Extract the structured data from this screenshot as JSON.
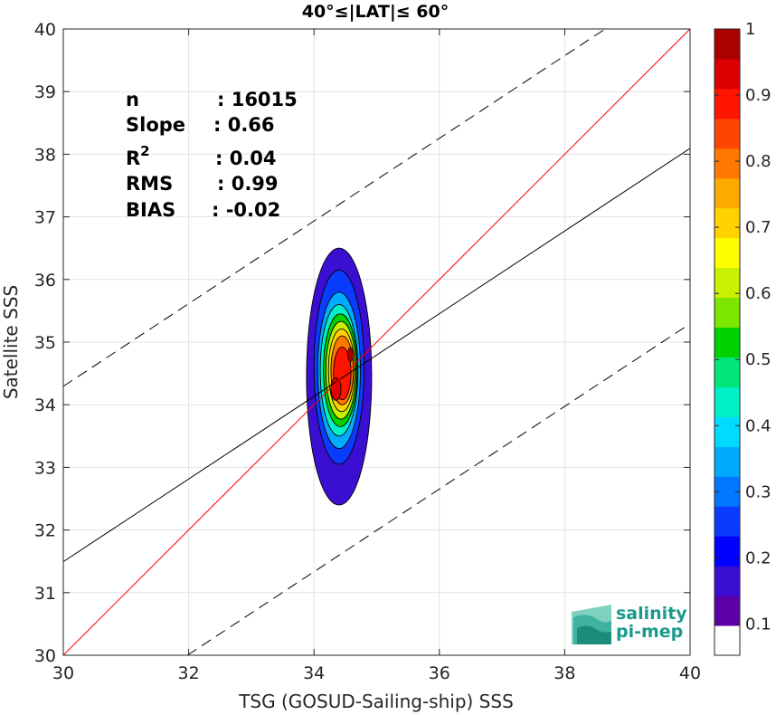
{
  "chart_data": {
    "type": "scatter",
    "title": "40°≤|LAT|≤ 60°",
    "xlabel": "TSG (GOSUD-Sailing-ship) SSS",
    "ylabel": "Satellite SSS",
    "xlim": [
      30,
      40
    ],
    "ylim": [
      30,
      40
    ],
    "xticks": [
      "30",
      "32",
      "34",
      "36",
      "38",
      "40"
    ],
    "yticks": [
      "30",
      "31",
      "32",
      "33",
      "34",
      "35",
      "36",
      "37",
      "38",
      "39",
      "40"
    ],
    "grid": true,
    "stats": [
      {
        "label": "n",
        "value": ": 16015"
      },
      {
        "label": "Slope",
        "value": ": 0.66"
      },
      {
        "label": "R",
        "sup": "2",
        "value": ": 0.04"
      },
      {
        "label": "RMS",
        "value": ": 0.99"
      },
      {
        "label": "BIAS",
        "value": ": -0.02"
      }
    ],
    "identity_line": {
      "slope": 1,
      "intercept": 0,
      "color": "#ff0000"
    },
    "fit_line": {
      "slope": 0.66,
      "intercept": 11.694,
      "color": "#000000"
    },
    "rms_bounds": {
      "offset": 2.8,
      "style": "dashed",
      "color": "#000000"
    },
    "density_center": {
      "x": 34.4,
      "y": 34.3
    },
    "colorbar": {
      "range": [
        0,
        1
      ],
      "ticks": [
        "0.1",
        "0.2",
        "0.3",
        "0.4",
        "0.5",
        "0.6",
        "0.7",
        "0.8",
        "0.9",
        "1"
      ],
      "colors": [
        "#ffffff",
        "#5c00a8",
        "#3b0fd2",
        "#0000ff",
        "#0a3cff",
        "#0078ff",
        "#00aaff",
        "#00dcff",
        "#00f0c8",
        "#00e67a",
        "#00d200",
        "#7de600",
        "#c8f000",
        "#ffff00",
        "#ffd200",
        "#ffaa00",
        "#ff7800",
        "#ff4600",
        "#ff1400",
        "#dc0000",
        "#aa0000"
      ]
    }
  },
  "logo": {
    "line1": "salinity",
    "line2": "pi-mep"
  }
}
